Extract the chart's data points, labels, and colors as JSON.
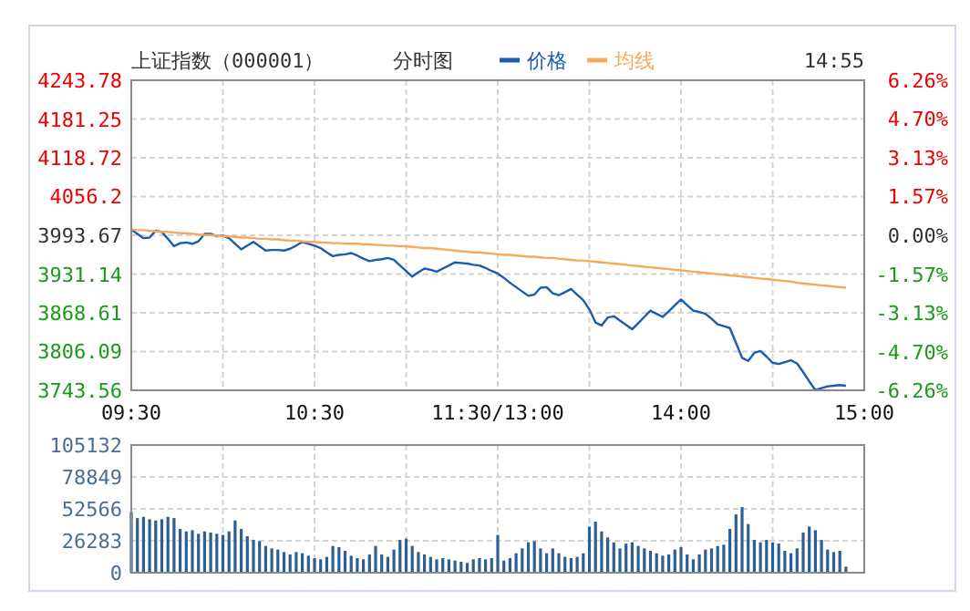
{
  "chart_data": [
    {
      "type": "line",
      "title": "上证指数（000001）",
      "subtitle": "分时图",
      "annotations": [
        "14:55"
      ],
      "legend": "top",
      "grid": true,
      "categories": [
        "09:30",
        null,
        null,
        null,
        null,
        null,
        null,
        null,
        null,
        null,
        null,
        null,
        null,
        null,
        null,
        null,
        null,
        null,
        null,
        null,
        null,
        null,
        null,
        null,
        null,
        null,
        null,
        null,
        null,
        null,
        "10:30",
        null,
        null,
        null,
        null,
        null,
        null,
        null,
        null,
        null,
        null,
        null,
        null,
        null,
        null,
        null,
        null,
        null,
        null,
        null,
        null,
        null,
        null,
        null,
        null,
        null,
        null,
        null,
        null,
        null,
        "11:30/13:00",
        null,
        null,
        null,
        null,
        null,
        null,
        null,
        null,
        null,
        null,
        null,
        null,
        null,
        null,
        null,
        null,
        null,
        null,
        null,
        null,
        null,
        null,
        null,
        null,
        null,
        null,
        null,
        null,
        null,
        "14:00",
        null,
        null,
        null,
        null,
        null,
        null,
        null,
        null,
        null,
        null,
        null,
        null,
        null,
        null,
        null,
        null,
        null,
        null,
        null,
        null,
        null,
        null,
        null,
        null,
        null,
        null,
        null,
        null,
        null,
        "15:00"
      ],
      "ylim": [
        3743.56,
        4243.78
      ],
      "yticks": [
        3743.56,
        3806.09,
        3868.61,
        3931.14,
        3993.67,
        4056.2,
        4118.72,
        4181.25,
        4243.78
      ],
      "y2lim": [
        -6.26,
        6.26
      ],
      "y2ticks": [
        {
          "value": -6.26,
          "label": "-6.26%"
        },
        {
          "value": -4.7,
          "label": "-4.70%"
        },
        {
          "value": -3.13,
          "label": "-3.13%"
        },
        {
          "value": -1.57,
          "label": "-1.57%"
        },
        {
          "value": 0,
          "label": "0.00%"
        },
        {
          "value": 1.57,
          "label": "1.57%"
        },
        {
          "value": 3.13,
          "label": "3.13%"
        },
        {
          "value": 4.7,
          "label": "4.70%"
        },
        {
          "value": 6.26,
          "label": "6.26%"
        }
      ],
      "series": [
        {
          "name": "价格",
          "color": "#1a5cb0",
          "values": [
            4003,
            3996,
            3989,
            3990,
            4001,
            3999,
            3988,
            3976,
            3981,
            3982,
            3980,
            3984,
            3996,
            3996,
            3992,
            3993,
            3989,
            3980,
            3971,
            3977,
            3983,
            3976,
            3969,
            3970,
            3970,
            3969,
            3972,
            3977,
            3983,
            3980,
            3977,
            3973,
            3966,
            3960,
            3962,
            3963,
            3965,
            3961,
            3956,
            3952,
            3954,
            3955,
            3957,
            3954,
            3945,
            3936,
            3927,
            3934,
            3940,
            3938,
            3935,
            3940,
            3945,
            3950,
            3949,
            3948,
            3946,
            3945,
            3941,
            3936,
            3932,
            3925,
            3917,
            3910,
            3903,
            3896,
            3898,
            3909,
            3910,
            3900,
            3897,
            3902,
            3907,
            3898,
            3889,
            3874,
            3853,
            3848,
            3861,
            3863,
            3856,
            3849,
            3842,
            3852,
            3862,
            3872,
            3867,
            3862,
            3871,
            3881,
            3890,
            3881,
            3872,
            3870,
            3867,
            3859,
            3850,
            3847,
            3844,
            3820,
            3796,
            3791,
            3804,
            3807,
            3798,
            3788,
            3786,
            3789,
            3792,
            3787,
            3773,
            3758,
            3744,
            3747,
            3750,
            3751,
            3752,
            3751,
            null,
            null,
            null
          ]
        },
        {
          "name": "均线",
          "color": "#f5a95a",
          "values": [
            4003,
            4002,
            4002,
            4001,
            4000,
            3999,
            3999,
            3998,
            3997,
            3997,
            3996,
            3995,
            3994,
            3994,
            3993,
            3992,
            3992,
            3991,
            3990,
            3990,
            3989,
            3988,
            3988,
            3987,
            3987,
            3986,
            3985,
            3985,
            3984,
            3983,
            3983,
            3982,
            3982,
            3981,
            3981,
            3980,
            3980,
            3980,
            3979,
            3979,
            3978,
            3978,
            3977,
            3977,
            3976,
            3976,
            3975,
            3974,
            3973,
            3973,
            3972,
            3971,
            3970,
            3969,
            3968,
            3967,
            3966,
            3966,
            3965,
            3964,
            3963,
            3962,
            3962,
            3961,
            3960,
            3959,
            3959,
            3958,
            3957,
            3957,
            3956,
            3955,
            3954,
            3953,
            3953,
            3952,
            3951,
            3950,
            3949,
            3948,
            3947,
            3946,
            3945,
            3944,
            3943,
            3942,
            3941,
            3940,
            3939,
            3938,
            3937,
            3936,
            3935,
            3934,
            3933,
            3932,
            3931,
            3930,
            3929,
            3928,
            3927,
            3926,
            3925,
            3924,
            3923,
            3922,
            3921,
            3920,
            3919,
            3917,
            3916,
            3915,
            3914,
            3913,
            3912,
            3911,
            3910,
            3909,
            null,
            null,
            null
          ]
        }
      ]
    },
    {
      "type": "bar",
      "tick_labels": "y",
      "grid": true,
      "color": "#2d5f94",
      "categories": [
        null,
        null,
        null,
        null,
        null,
        null,
        null,
        null,
        null,
        null,
        null,
        null,
        null,
        null,
        null,
        null,
        null,
        null,
        null,
        null,
        null,
        null,
        null,
        null,
        null,
        null,
        null,
        null,
        null,
        null,
        null,
        null,
        null,
        null,
        null,
        null,
        null,
        null,
        null,
        null,
        null,
        null,
        null,
        null,
        null,
        null,
        null,
        null,
        null,
        null,
        null,
        null,
        null,
        null,
        null,
        null,
        null,
        null,
        null,
        null,
        null,
        null,
        null,
        null,
        null,
        null,
        null,
        null,
        null,
        null,
        null,
        null,
        null,
        null,
        null,
        null,
        null,
        null,
        null,
        null,
        null,
        null,
        null,
        null,
        null,
        null,
        null,
        null,
        null,
        null,
        null,
        null,
        null,
        null,
        null,
        null,
        null,
        null,
        null,
        null,
        null,
        null,
        null,
        null,
        null,
        null,
        null,
        null,
        null,
        null,
        null,
        null,
        null,
        null,
        null,
        null,
        null,
        null,
        null,
        null,
        null
      ],
      "ylim": [
        0,
        105132
      ],
      "yticks": [
        0,
        26283,
        52566,
        78849,
        105132
      ],
      "values": [
        50000,
        45000,
        46000,
        44000,
        43000,
        44000,
        46000,
        45000,
        36000,
        34000,
        35000,
        32000,
        34000,
        33000,
        32000,
        31000,
        34000,
        43000,
        36000,
        30000,
        27000,
        26000,
        22000,
        20000,
        19000,
        17000,
        15000,
        17000,
        16000,
        14000,
        12000,
        11000,
        13000,
        22000,
        21000,
        18000,
        14000,
        12000,
        11000,
        15000,
        22000,
        15000,
        13000,
        19000,
        27000,
        28000,
        22000,
        17000,
        15000,
        13000,
        11000,
        12000,
        11000,
        10000,
        9000,
        8000,
        11000,
        12000,
        11000,
        12000,
        31000,
        10000,
        12000,
        16000,
        20000,
        25000,
        26000,
        20000,
        16000,
        20000,
        16000,
        13000,
        12000,
        13000,
        16000,
        38000,
        42000,
        34000,
        29000,
        25000,
        20000,
        24000,
        25000,
        22000,
        20000,
        18000,
        16000,
        14000,
        15000,
        19000,
        21000,
        15000,
        11000,
        15000,
        19000,
        20000,
        22000,
        23000,
        36000,
        48000,
        54000,
        40000,
        27000,
        25000,
        27000,
        25000,
        24000,
        18000,
        16000,
        20000,
        33000,
        38000,
        35000,
        27000,
        19000,
        17000,
        18000,
        5000,
        null,
        null,
        null
      ]
    }
  ]
}
